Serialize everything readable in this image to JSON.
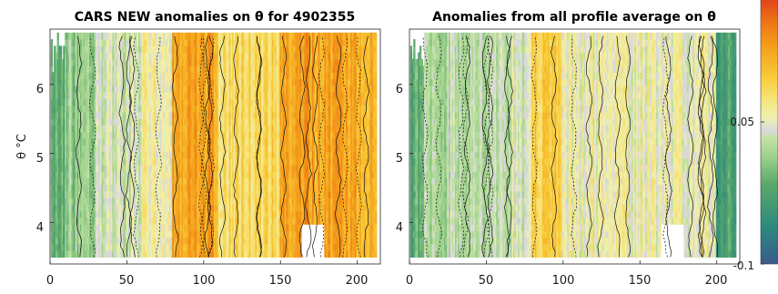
{
  "chart_data": [
    {
      "type": "heatmap",
      "title": "CARS NEW anomalies on θ for 4902355",
      "ylabel": "θ °C",
      "xlabel": "",
      "xlim": [
        0,
        215
      ],
      "ylim": [
        3.4,
        6.8
      ],
      "xticks": [
        0,
        50,
        100,
        150,
        200
      ],
      "yticks": [
        4,
        5,
        6
      ],
      "missing_regions": [
        {
          "x_from": 164,
          "x_to": 178,
          "y_from": 3.45,
          "y_to": 3.95
        }
      ],
      "profile_anomaly_strength": [
        {
          "x_from": 0,
          "x_to": 10,
          "value": -0.04
        },
        {
          "x_from": 10,
          "x_to": 30,
          "value": -0.02
        },
        {
          "x_from": 30,
          "x_to": 60,
          "value": 0.0
        },
        {
          "x_from": 60,
          "x_to": 80,
          "value": 0.01
        },
        {
          "x_from": 80,
          "x_to": 110,
          "value": 0.06
        },
        {
          "x_from": 110,
          "x_to": 150,
          "value": 0.03
        },
        {
          "x_from": 150,
          "x_to": 200,
          "value": 0.06
        },
        {
          "x_from": 200,
          "x_to": 215,
          "value": 0.05
        }
      ]
    },
    {
      "type": "heatmap",
      "title": "Anomalies from all profile average on θ",
      "ylabel": "",
      "xlabel": "",
      "xlim": [
        0,
        215
      ],
      "ylim": [
        3.4,
        6.8
      ],
      "xticks": [
        0,
        50,
        100,
        150,
        200
      ],
      "yticks": [
        4,
        5,
        6
      ],
      "missing_regions": [
        {
          "x_from": 164,
          "x_to": 178,
          "y_from": 3.45,
          "y_to": 3.95
        }
      ],
      "profile_anomaly_strength": [
        {
          "x_from": 0,
          "x_to": 10,
          "value": -0.04
        },
        {
          "x_from": 10,
          "x_to": 60,
          "value": -0.01
        },
        {
          "x_from": 60,
          "x_to": 80,
          "value": 0.0
        },
        {
          "x_from": 80,
          "x_to": 100,
          "value": 0.04
        },
        {
          "x_from": 100,
          "x_to": 200,
          "value": 0.01
        },
        {
          "x_from": 200,
          "x_to": 215,
          "value": -0.05
        }
      ]
    }
  ],
  "colorbar": {
    "range": [
      -0.1,
      0.1
    ],
    "ticks": [
      {
        "value": 0.05,
        "label": "0.05"
      },
      {
        "value": -0.1,
        "label": "-0.1"
      }
    ],
    "colormap": [
      {
        "value": -0.1,
        "color": "#3a5a8c"
      },
      {
        "value": -0.07,
        "color": "#2e8c7c"
      },
      {
        "value": -0.04,
        "color": "#5aa86a"
      },
      {
        "value": -0.02,
        "color": "#9ccf8c"
      },
      {
        "value": -0.005,
        "color": "#c4e3a4"
      },
      {
        "value": 0.0,
        "color": "#d9d9d9"
      },
      {
        "value": 0.01,
        "color": "#eef0b0"
      },
      {
        "value": 0.02,
        "color": "#f5e88a"
      },
      {
        "value": 0.04,
        "color": "#f8cc3a"
      },
      {
        "value": 0.06,
        "color": "#f5a61e"
      },
      {
        "value": 0.08,
        "color": "#ee7a14"
      },
      {
        "value": 0.1,
        "color": "#e0421a"
      }
    ]
  }
}
